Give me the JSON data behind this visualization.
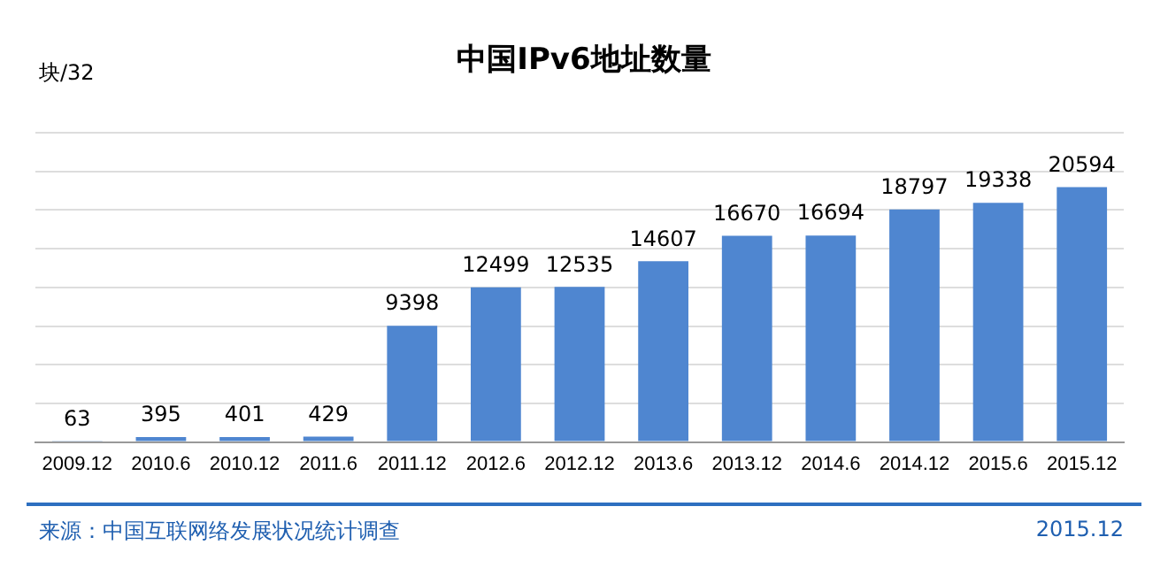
{
  "chart_data": {
    "type": "bar",
    "title": "中国IPv6地址数量",
    "ylabel": "块/32",
    "categories": [
      "2009.12",
      "2010.6",
      "2010.12",
      "2011.6",
      "2011.12",
      "2012.6",
      "2012.12",
      "2013.6",
      "2013.12",
      "2014.6",
      "2014.12",
      "2015.6",
      "2015.12"
    ],
    "values": [
      63,
      395,
      401,
      429,
      9398,
      12499,
      12535,
      14607,
      16670,
      16694,
      18797,
      19338,
      20594
    ],
    "color": "#4f86d0",
    "data_labels": true,
    "grid": "y",
    "tick_labels": "x",
    "legend": false,
    "annotations": [
      "来源：中国互联网络发展状况统计调查",
      "2015.12"
    ]
  }
}
